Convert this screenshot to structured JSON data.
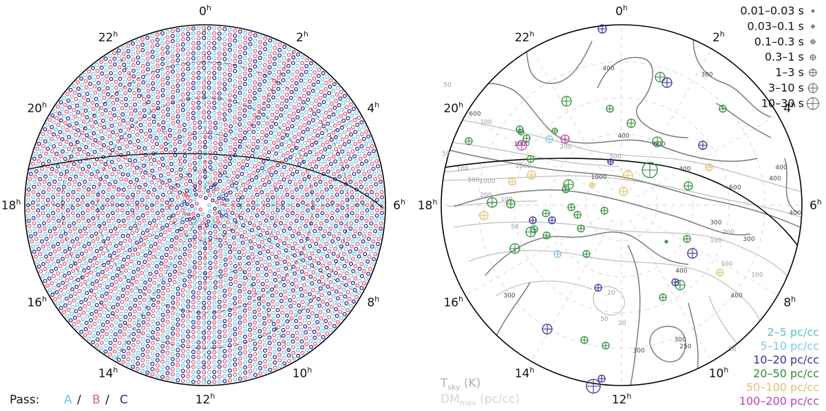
{
  "colors": {
    "pass_A": "#6cc8e6",
    "pass_B": "#e05a78",
    "pass_C": "#2a2a8c",
    "contour_tsky": "#777777",
    "contour_dm": "#b8b8b8",
    "galactic_plane": "#000000",
    "dm_2_5": "#5ec4b8",
    "dm_5_10": "#7cc8e6",
    "dm_10_20": "#3a2e96",
    "dm_20_50": "#2e8b3a",
    "dm_50_100": "#e0c070",
    "dm_100_200": "#c040b0"
  },
  "left_panel": {
    "hour_labels": [
      {
        "h": "0",
        "sup": "h"
      },
      {
        "h": "2",
        "sup": "h"
      },
      {
        "h": "4",
        "sup": "h"
      },
      {
        "h": "6",
        "sup": "h"
      },
      {
        "h": "8",
        "sup": "h"
      },
      {
        "h": "10",
        "sup": "h"
      },
      {
        "h": "12",
        "sup": "h"
      },
      {
        "h": "14",
        "sup": "h"
      },
      {
        "h": "16",
        "sup": "h"
      },
      {
        "h": "18",
        "sup": "h"
      },
      {
        "h": "20",
        "sup": "h"
      },
      {
        "h": "22",
        "sup": "h"
      }
    ],
    "pass_legend": {
      "prefix": "Pass:",
      "a": "A",
      "sep1": "/",
      "b": "B",
      "sep2": "/",
      "c": "C"
    }
  },
  "right_panel": {
    "hour_labels": [
      {
        "h": "0",
        "sup": "h"
      },
      {
        "h": "2",
        "sup": "h"
      },
      {
        "h": "4",
        "sup": "h"
      },
      {
        "h": "6",
        "sup": "h"
      },
      {
        "h": "8",
        "sup": "h"
      },
      {
        "h": "10",
        "sup": "h"
      },
      {
        "h": "12",
        "sup": "h"
      },
      {
        "h": "14",
        "sup": "h"
      },
      {
        "h": "16",
        "sup": "h"
      },
      {
        "h": "18",
        "sup": "h"
      },
      {
        "h": "20",
        "sup": "h"
      },
      {
        "h": "22",
        "sup": "h"
      }
    ],
    "period_legend": [
      {
        "label": "0.01–0.03 s",
        "size": 1
      },
      {
        "label": "0.03–0.1 s",
        "size": 2
      },
      {
        "label": "0.1–0.3 s",
        "size": 3
      },
      {
        "label": "0.3–1 s",
        "size": 4
      },
      {
        "label": "1–3 s",
        "size": 5
      },
      {
        "label": "3–10 s",
        "size": 6
      },
      {
        "label": "10–30 s",
        "size": 7
      }
    ],
    "dm_legend": [
      {
        "label": "2–5 pc/cc",
        "color_key": "dm_2_5"
      },
      {
        "label": "5–10 pc/cc",
        "color_key": "dm_5_10"
      },
      {
        "label": "10–20 pc/cc",
        "color_key": "dm_10_20"
      },
      {
        "label": "20–50 pc/cc",
        "color_key": "dm_20_50"
      },
      {
        "label": "50–100 pc/cc",
        "color_key": "dm_50_100"
      },
      {
        "label": "100–200 pc/cc",
        "color_key": "dm_100_200"
      }
    ],
    "contour_legend": {
      "tsky": "T",
      "tsky_sub": "sky",
      "tsky_unit": " (K)",
      "dm": "DM",
      "dm_sub": "max",
      "dm_unit": " (pc/cc)"
    },
    "contour_labels_tsky": [
      "400",
      "300",
      "400",
      "400",
      "600",
      "1000",
      "600",
      "600",
      "400",
      "400",
      "300",
      "1000",
      "300",
      "400",
      "300",
      "400",
      "300",
      "300",
      "250",
      "400"
    ],
    "contour_labels_dm": [
      "100",
      "50",
      "100",
      "50",
      "200",
      "500",
      "1000",
      "1000",
      "500",
      "200",
      "100",
      "50",
      "100",
      "200",
      "50",
      "100",
      "20",
      "50",
      "20",
      "100"
    ]
  }
}
